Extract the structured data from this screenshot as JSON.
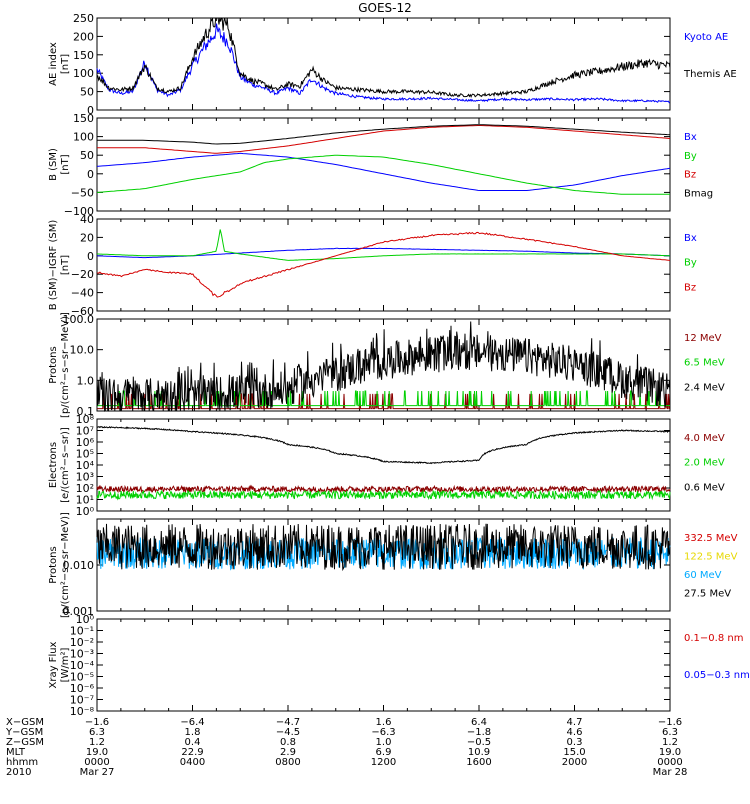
{
  "title": "GOES-12",
  "colors": {
    "black": "#000000",
    "blue": "#0000ff",
    "red": "#d40000",
    "green": "#00d000",
    "darkred": "#8b0000",
    "cyan": "#00aaff",
    "yellow": "#e6d800"
  },
  "chart_data": [
    {
      "type": "line",
      "panel": "ae",
      "ylabel": "AE index\n[nT]",
      "ylim": [
        0,
        250
      ],
      "yticks": [
        "0",
        "50",
        "100",
        "150",
        "200",
        "250"
      ],
      "series": [
        {
          "name": "Kyoto AE",
          "color": "#0000ff",
          "x": [
            0,
            30,
            60,
            90,
            120,
            150,
            180,
            210,
            240,
            270,
            300,
            330,
            360,
            390,
            420,
            450,
            480,
            510,
            540,
            570,
            600,
            660,
            720,
            780,
            840,
            900,
            960,
            1020,
            1080,
            1140,
            1200,
            1260,
            1320,
            1380,
            1440
          ],
          "y": [
            110,
            55,
            45,
            50,
            130,
            55,
            40,
            55,
            120,
            170,
            215,
            185,
            90,
            70,
            60,
            45,
            60,
            45,
            85,
            60,
            45,
            35,
            30,
            30,
            32,
            28,
            25,
            30,
            28,
            30,
            28,
            30,
            25,
            25,
            22
          ]
        },
        {
          "name": "Themis AE",
          "color": "#000000",
          "x": [
            0,
            30,
            60,
            90,
            120,
            150,
            180,
            210,
            240,
            270,
            300,
            330,
            360,
            390,
            420,
            450,
            480,
            510,
            540,
            570,
            600,
            660,
            720,
            780,
            840,
            900,
            960,
            1020,
            1080,
            1140,
            1200,
            1260,
            1320,
            1380,
            1440
          ],
          "y": [
            95,
            60,
            55,
            60,
            120,
            60,
            50,
            60,
            140,
            200,
            250,
            230,
            100,
            80,
            70,
            55,
            70,
            65,
            110,
            80,
            60,
            55,
            50,
            50,
            48,
            40,
            40,
            45,
            50,
            75,
            95,
            105,
            118,
            128,
            120
          ]
        }
      ]
    },
    {
      "type": "line",
      "panel": "b",
      "ylabel": "B (SM)\n[nT]",
      "ylim": [
        -100,
        150
      ],
      "yticks": [
        "−100",
        "−50",
        "0",
        "50",
        "100",
        "150"
      ],
      "series": [
        {
          "name": "Bx",
          "color": "#0000ff",
          "x": [
            0,
            120,
            240,
            360,
            480,
            600,
            720,
            840,
            960,
            1080,
            1200,
            1320,
            1440
          ],
          "y": [
            20,
            30,
            45,
            55,
            45,
            25,
            0,
            -25,
            -45,
            -45,
            -30,
            -5,
            15
          ]
        },
        {
          "name": "By",
          "color": "#00d000",
          "x": [
            0,
            120,
            240,
            360,
            420,
            480,
            600,
            720,
            840,
            960,
            1080,
            1200,
            1320,
            1440
          ],
          "y": [
            -50,
            -40,
            -15,
            5,
            30,
            40,
            50,
            45,
            25,
            0,
            -25,
            -45,
            -55,
            -55
          ]
        },
        {
          "name": "Bz",
          "color": "#d40000",
          "x": [
            0,
            120,
            240,
            300,
            360,
            480,
            600,
            720,
            840,
            960,
            1080,
            1200,
            1320,
            1440
          ],
          "y": [
            70,
            70,
            60,
            55,
            60,
            75,
            95,
            115,
            125,
            130,
            125,
            115,
            105,
            95
          ]
        },
        {
          "name": "Bmag",
          "color": "#000000",
          "x": [
            0,
            120,
            240,
            300,
            360,
            480,
            600,
            720,
            840,
            960,
            1080,
            1200,
            1320,
            1440
          ],
          "y": [
            90,
            90,
            85,
            80,
            82,
            95,
            110,
            120,
            128,
            132,
            128,
            120,
            112,
            105
          ]
        }
      ]
    },
    {
      "type": "line",
      "panel": "bdiff",
      "ylabel": "B (SM)−IGRF (SM)\n[nT]",
      "ylim": [
        -60,
        40
      ],
      "yticks": [
        "−60",
        "−40",
        "−20",
        "0",
        "20",
        "40"
      ],
      "series": [
        {
          "name": "Bx",
          "color": "#0000ff",
          "x": [
            0,
            120,
            240,
            360,
            480,
            600,
            720,
            840,
            960,
            1080,
            1200,
            1320,
            1440
          ],
          "y": [
            0,
            -2,
            0,
            3,
            6,
            8,
            8,
            7,
            6,
            5,
            3,
            2,
            0
          ]
        },
        {
          "name": "By",
          "color": "#00d000",
          "x": [
            0,
            120,
            240,
            300,
            310,
            320,
            360,
            480,
            600,
            720,
            840,
            960,
            1080,
            1200,
            1320,
            1440
          ],
          "y": [
            2,
            0,
            0,
            5,
            30,
            5,
            2,
            -5,
            -3,
            0,
            2,
            2,
            2,
            2,
            2,
            0
          ]
        },
        {
          "name": "Bz",
          "color": "#d40000",
          "x": [
            0,
            60,
            120,
            180,
            240,
            300,
            330,
            360,
            480,
            600,
            720,
            840,
            960,
            1080,
            1200,
            1320,
            1440
          ],
          "y": [
            -18,
            -22,
            -15,
            -18,
            -20,
            -45,
            -38,
            -30,
            -15,
            0,
            15,
            22,
            25,
            18,
            10,
            0,
            -5
          ]
        }
      ]
    },
    {
      "type": "line",
      "panel": "protons-low",
      "ylabel": "Protons\n[p/(cm²−s−sr−MeV)]",
      "yscale": "log",
      "ylim": [
        0.1,
        100
      ],
      "yticks": [
        "0.1",
        "1.0",
        "10.0",
        "100.0"
      ],
      "series": [
        {
          "name": "12 MeV",
          "color": "#8b0000",
          "x": [
            0,
            1440
          ],
          "y": [
            0.12,
            0.12
          ]
        },
        {
          "name": "6.5 MeV",
          "color": "#00d000",
          "x": [
            0,
            1440
          ],
          "y": [
            0.15,
            0.15
          ]
        },
        {
          "name": "2.4 MeV",
          "color": "#000000",
          "x": [
            0,
            240,
            480,
            600,
            720,
            840,
            960,
            1080,
            1200,
            1320,
            1440
          ],
          "y": [
            0.3,
            0.3,
            0.5,
            1.5,
            4,
            7,
            8,
            6,
            3,
            1,
            0.4
          ]
        }
      ]
    },
    {
      "type": "line",
      "panel": "electrons",
      "ylabel": "Electrons\n[e/(cm²−s−sr)]",
      "yscale": "log",
      "ylim": [
        1,
        100000000
      ],
      "yticks": [
        "10⁰",
        "10¹",
        "10²",
        "10³",
        "10⁴",
        "10⁵",
        "10⁶",
        "10⁷",
        "10⁸"
      ],
      "series": [
        {
          "name": "4.0 MeV",
          "color": "#8b0000",
          "x": [
            0,
            1440
          ],
          "y": [
            80,
            80
          ]
        },
        {
          "name": "2.0 MeV",
          "color": "#00d000",
          "x": [
            0,
            1440
          ],
          "y": [
            25,
            25
          ]
        },
        {
          "name": "0.6 MeV",
          "color": "#000000",
          "x": [
            0,
            120,
            240,
            360,
            480,
            600,
            720,
            840,
            960,
            1080,
            1200,
            1320,
            1440
          ],
          "y": [
            20000000,
            15000000,
            8000000,
            4000000,
            600000,
            100000,
            20000,
            15000,
            25000,
            600000,
            6000000,
            10000000,
            8000000
          ]
        }
      ]
    },
    {
      "type": "line",
      "panel": "protons-high",
      "ylabel": "Protons\n[p/(cm²−s−sr−MeV)]",
      "yscale": "log",
      "ylim": [
        0.001,
        0.1
      ],
      "yticks": [
        "0.001",
        "0.010"
      ],
      "series": [
        {
          "name": "332.5 MeV",
          "color": "#d40000",
          "x": [],
          "y": []
        },
        {
          "name": "122.5 MeV",
          "color": "#e6d800",
          "x": [],
          "y": []
        },
        {
          "name": "60 MeV",
          "color": "#00aaff",
          "x": [
            0,
            1440
          ],
          "y": [
            0.018,
            0.018
          ]
        },
        {
          "name": "27.5 MeV",
          "color": "#000000",
          "x": [
            0,
            1440
          ],
          "y": [
            0.025,
            0.025
          ]
        }
      ]
    },
    {
      "type": "line",
      "panel": "xray",
      "ylabel": "Xray Flux\n[W/m²]",
      "yscale": "log",
      "ylim": [
        1e-08,
        1
      ],
      "yticks": [
        "10⁻⁸",
        "10⁻⁷",
        "10⁻⁶",
        "10⁻⁵",
        "10⁻⁴",
        "10⁻³",
        "10⁻²",
        "10⁻¹",
        "10⁰"
      ],
      "series": [
        {
          "name": "0.1−0.8 nm",
          "color": "#d40000",
          "x": [],
          "y": []
        },
        {
          "name": "0.05−0.3 nm",
          "color": "#0000ff",
          "x": [],
          "y": []
        }
      ]
    }
  ],
  "footer": {
    "rows": [
      {
        "label": "X−GSM",
        "values": [
          "−1.6",
          "−6.4",
          "−4.7",
          "1.6",
          "6.4",
          "4.7",
          "−1.6"
        ]
      },
      {
        "label": "Y−GSM",
        "values": [
          "6.3",
          "1.8",
          "−4.5",
          "−6.3",
          "−1.8",
          "4.6",
          "6.3"
        ]
      },
      {
        "label": "Z−GSM",
        "values": [
          "1.2",
          "0.4",
          "0.8",
          "1.0",
          "−0.5",
          "0.3",
          "1.2"
        ]
      },
      {
        "label": "MLT",
        "values": [
          "19.0",
          "22.9",
          "2.9",
          "6.9",
          "10.9",
          "15.0",
          "19.0"
        ]
      },
      {
        "label": "hhmm",
        "values": [
          "0000",
          "0400",
          "0800",
          "1200",
          "1600",
          "2000",
          "0000"
        ]
      }
    ],
    "year": "2010",
    "date_start": "Mar 27",
    "date_end": "Mar 28"
  }
}
